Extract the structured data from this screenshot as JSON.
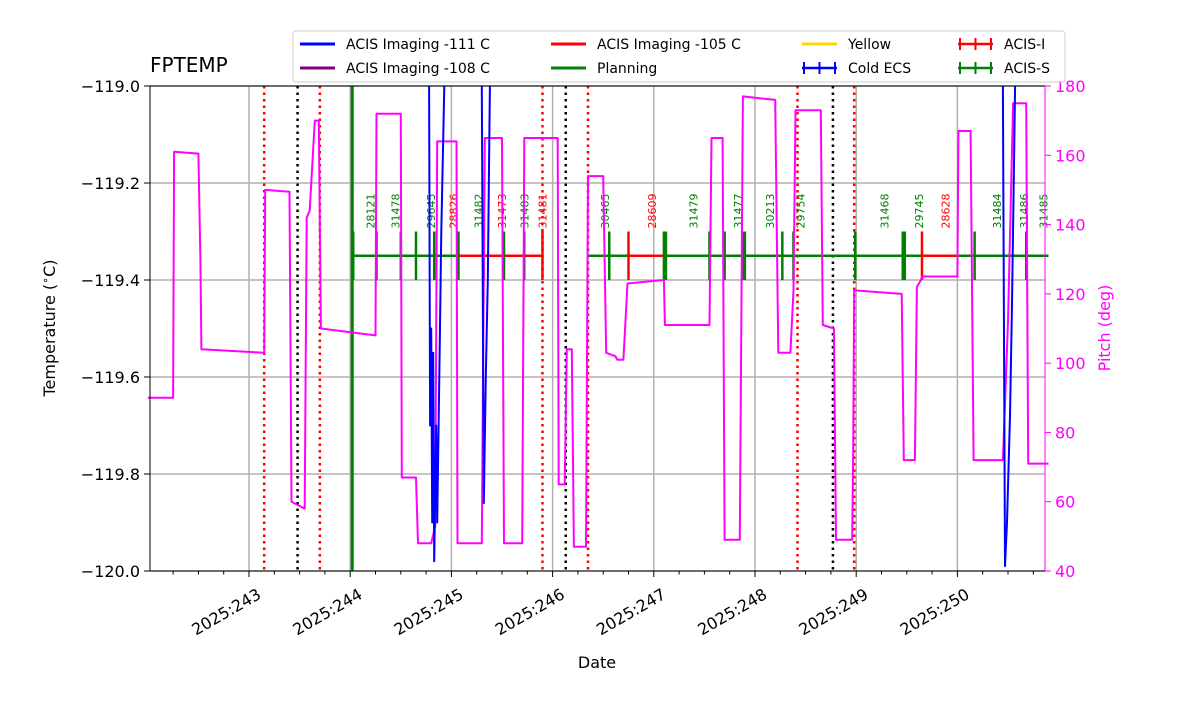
{
  "chart_data": {
    "type": "line",
    "title": "FPTEMP",
    "xlabel": "Date",
    "ylabel": "Temperature ($^\\circ$C)",
    "y2label": "Pitch (deg)",
    "xlim": [
      242.0,
      250.9
    ],
    "ylim": [
      -120.0,
      -119.0
    ],
    "y2lim": [
      40,
      180
    ],
    "xticks": [
      243,
      244,
      245,
      246,
      247,
      248,
      249,
      250
    ],
    "xtick_labels": [
      "2025:243",
      "2025:244",
      "2025:245",
      "2025:246",
      "2025:247",
      "2025:248",
      "2025:249",
      "2025:250"
    ],
    "yticks": [
      -120.0,
      -119.8,
      -119.6,
      -119.4,
      -119.2,
      -119.0
    ],
    "ytick_labels": [
      "−120.0",
      "−119.8",
      "−119.6",
      "−119.4",
      "−119.2",
      "−119.0"
    ],
    "y2ticks": [
      40,
      60,
      80,
      100,
      120,
      140,
      160,
      180
    ],
    "y2tick_labels": [
      "40",
      "60",
      "80",
      "100",
      "120",
      "140",
      "160",
      "180"
    ],
    "legend": [
      {
        "label": "ACIS Imaging -111 C",
        "color": "#0000ff",
        "kind": "line"
      },
      {
        "label": "ACIS Imaging -105 C",
        "color": "#ff0000",
        "kind": "line"
      },
      {
        "label": "Yellow",
        "color": "#ffd700",
        "kind": "line"
      },
      {
        "label": "ACIS-I",
        "color": "#ff0000",
        "kind": "errorbar"
      },
      {
        "label": "ACIS Imaging -108 C",
        "color": "#800080",
        "kind": "line"
      },
      {
        "label": "Planning",
        "color": "#008000",
        "kind": "line"
      },
      {
        "label": "Cold ECS",
        "color": "#0000ff",
        "kind": "errorbar"
      },
      {
        "label": "ACIS-S",
        "color": "#008000",
        "kind": "errorbar"
      }
    ],
    "series": [
      {
        "name": "Pitch (deg)",
        "axis": "right",
        "color": "#ff00ff",
        "points": [
          [
            242.0,
            90
          ],
          [
            242.25,
            90
          ],
          [
            242.26,
            161
          ],
          [
            242.5,
            160.5
          ],
          [
            242.52,
            130
          ],
          [
            242.53,
            104
          ],
          [
            243.15,
            103
          ],
          [
            243.16,
            150
          ],
          [
            243.4,
            149.5
          ],
          [
            243.42,
            60
          ],
          [
            243.55,
            58
          ],
          [
            243.57,
            142
          ],
          [
            243.6,
            144
          ],
          [
            243.65,
            170
          ],
          [
            243.69,
            170
          ],
          [
            243.71,
            110
          ],
          [
            244.25,
            108
          ],
          [
            244.26,
            172
          ],
          [
            244.5,
            172
          ],
          [
            244.51,
            67
          ],
          [
            244.65,
            67
          ],
          [
            244.67,
            48
          ],
          [
            244.8,
            48
          ],
          [
            244.84,
            53
          ],
          [
            244.86,
            164
          ],
          [
            245.05,
            164
          ],
          [
            245.06,
            48
          ],
          [
            245.3,
            48
          ],
          [
            245.33,
            165
          ],
          [
            245.5,
            165
          ],
          [
            245.52,
            48
          ],
          [
            245.7,
            48
          ],
          [
            245.72,
            165
          ],
          [
            246.05,
            165
          ],
          [
            246.06,
            65
          ],
          [
            246.12,
            65
          ],
          [
            246.14,
            104
          ],
          [
            246.19,
            104
          ],
          [
            246.21,
            47
          ],
          [
            246.33,
            47
          ],
          [
            246.35,
            154
          ],
          [
            246.5,
            154
          ],
          [
            246.53,
            103
          ],
          [
            246.62,
            102
          ],
          [
            246.64,
            101
          ],
          [
            246.7,
            101
          ],
          [
            246.74,
            123
          ],
          [
            247.1,
            124
          ],
          [
            247.11,
            111
          ],
          [
            247.55,
            111
          ],
          [
            247.57,
            165
          ],
          [
            247.68,
            165
          ],
          [
            247.7,
            49
          ],
          [
            247.85,
            49
          ],
          [
            247.88,
            177
          ],
          [
            248.2,
            176
          ],
          [
            248.23,
            103
          ],
          [
            248.35,
            103
          ],
          [
            248.38,
            121
          ],
          [
            248.4,
            173
          ],
          [
            248.65,
            173
          ],
          [
            248.67,
            111
          ],
          [
            248.78,
            110
          ],
          [
            248.8,
            49
          ],
          [
            248.96,
            49
          ],
          [
            248.97,
            75
          ],
          [
            248.98,
            121
          ],
          [
            249.45,
            120
          ],
          [
            249.47,
            72
          ],
          [
            249.58,
            72
          ],
          [
            249.6,
            122
          ],
          [
            249.64,
            124
          ],
          [
            249.65,
            125
          ],
          [
            250.0,
            125
          ],
          [
            250.01,
            167
          ],
          [
            250.13,
            167
          ],
          [
            250.16,
            72
          ],
          [
            250.45,
            72
          ],
          [
            250.5,
            112
          ],
          [
            250.55,
            175
          ],
          [
            250.68,
            175
          ],
          [
            250.7,
            71
          ],
          [
            250.9,
            71
          ]
        ]
      },
      {
        "name": "FPTEMP",
        "axis": "left",
        "color": "#0000ff",
        "segments": [
          [
            [
              244.78,
              -119.0
            ],
            [
              244.79,
              -119.7
            ],
            [
              244.8,
              -119.5
            ],
            [
              244.81,
              -119.9
            ],
            [
              244.82,
              -119.55
            ],
            [
              244.83,
              -119.98
            ],
            [
              244.85,
              -119.7
            ],
            [
              244.86,
              -119.9
            ],
            [
              244.88,
              -119.6
            ],
            [
              244.9,
              -119.3
            ],
            [
              244.93,
              -119.0
            ]
          ],
          [
            [
              245.3,
              -119.0
            ],
            [
              245.32,
              -119.86
            ],
            [
              245.34,
              -119.6
            ],
            [
              245.36,
              -119.4
            ],
            [
              245.38,
              -119.0
            ]
          ],
          [
            [
              250.45,
              -119.0
            ],
            [
              250.47,
              -119.99
            ],
            [
              250.49,
              -119.9
            ],
            [
              250.52,
              -119.68
            ],
            [
              250.54,
              -119.45
            ],
            [
              250.57,
              -119.0
            ]
          ]
        ]
      }
    ],
    "vlines_red": [
      243.15,
      243.7,
      245.9,
      246.35,
      248.42,
      248.98
    ],
    "vlines_black": [
      243.48,
      246.13,
      248.77
    ],
    "vline_green": 244.02,
    "obsids": [
      {
        "id": "28121",
        "x": 244.2,
        "color": "#008000"
      },
      {
        "id": "31478",
        "x": 244.45,
        "color": "#008000"
      },
      {
        "id": "29645",
        "x": 244.8,
        "color": "#008000"
      },
      {
        "id": "28826",
        "x": 245.02,
        "color": "#ff0000"
      },
      {
        "id": "31482",
        "x": 245.27,
        "color": "#008000"
      },
      {
        "id": "31473",
        "x": 245.5,
        "color": "#ff0000"
      },
      {
        "id": "31483",
        "x": 245.72,
        "color": "#008000"
      },
      {
        "id": "31481",
        "x": 245.9,
        "color": "#ff0000"
      },
      {
        "id": "30465",
        "x": 246.52,
        "color": "#008000"
      },
      {
        "id": "28609",
        "x": 246.98,
        "color": "#ff0000"
      },
      {
        "id": "31479",
        "x": 247.39,
        "color": "#008000"
      },
      {
        "id": "31477",
        "x": 247.83,
        "color": "#008000"
      },
      {
        "id": "30213",
        "x": 248.15,
        "color": "#008000"
      },
      {
        "id": "29754",
        "x": 248.45,
        "color": "#008000"
      },
      {
        "id": "31468",
        "x": 249.28,
        "color": "#008000"
      },
      {
        "id": "29745",
        "x": 249.62,
        "color": "#008000"
      },
      {
        "id": "28628",
        "x": 249.88,
        "color": "#ff0000"
      },
      {
        "id": "31484",
        "x": 250.39,
        "color": "#008000"
      },
      {
        "id": "31486",
        "x": 250.66,
        "color": "#008000"
      },
      {
        "id": "31485",
        "x": 250.85,
        "color": "#008000"
      }
    ],
    "instrument_segments": [
      {
        "x0": 244.02,
        "x1": 245.05,
        "color": "#008000"
      },
      {
        "x0": 245.05,
        "x1": 245.9,
        "color": "#ff0000"
      },
      {
        "x0": 246.35,
        "x1": 246.75,
        "color": "#008000"
      },
      {
        "x0": 246.75,
        "x1": 247.1,
        "color": "#ff0000"
      },
      {
        "x0": 247.1,
        "x1": 249.0,
        "color": "#008000"
      },
      {
        "x0": 249.0,
        "x1": 249.65,
        "color": "#008000"
      },
      {
        "x0": 249.65,
        "x1": 250.0,
        "color": "#ff0000"
      },
      {
        "x0": 250.0,
        "x1": 250.9,
        "color": "#008000"
      }
    ],
    "instrument_ticks": [
      {
        "x": 244.03,
        "color": "#008000"
      },
      {
        "x": 244.26,
        "color": "#008000"
      },
      {
        "x": 244.5,
        "color": "#008000"
      },
      {
        "x": 244.65,
        "color": "#008000"
      },
      {
        "x": 244.83,
        "color": "#008000"
      },
      {
        "x": 245.07,
        "color": "#008000"
      },
      {
        "x": 245.32,
        "color": "#008000"
      },
      {
        "x": 245.52,
        "color": "#008000"
      },
      {
        "x": 245.72,
        "color": "#008000"
      },
      {
        "x": 245.9,
        "color": "#ff0000"
      },
      {
        "x": 246.56,
        "color": "#008000"
      },
      {
        "x": 246.75,
        "color": "#ff0000"
      },
      {
        "x": 247.1,
        "color": "#008000"
      },
      {
        "x": 247.12,
        "color": "#008000"
      },
      {
        "x": 247.55,
        "color": "#008000"
      },
      {
        "x": 247.7,
        "color": "#008000"
      },
      {
        "x": 247.88,
        "color": "#008000"
      },
      {
        "x": 247.9,
        "color": "#008000"
      },
      {
        "x": 248.27,
        "color": "#008000"
      },
      {
        "x": 248.38,
        "color": "#008000"
      },
      {
        "x": 248.99,
        "color": "#008000"
      },
      {
        "x": 249.46,
        "color": "#008000"
      },
      {
        "x": 249.48,
        "color": "#008000"
      },
      {
        "x": 249.65,
        "color": "#ff0000"
      },
      {
        "x": 250.17,
        "color": "#008000"
      },
      {
        "x": 250.68,
        "color": "#008000"
      }
    ],
    "instrument_level": -119.35,
    "instrument_tick_top": -119.3,
    "instrument_tick_bottom": -119.4
  }
}
